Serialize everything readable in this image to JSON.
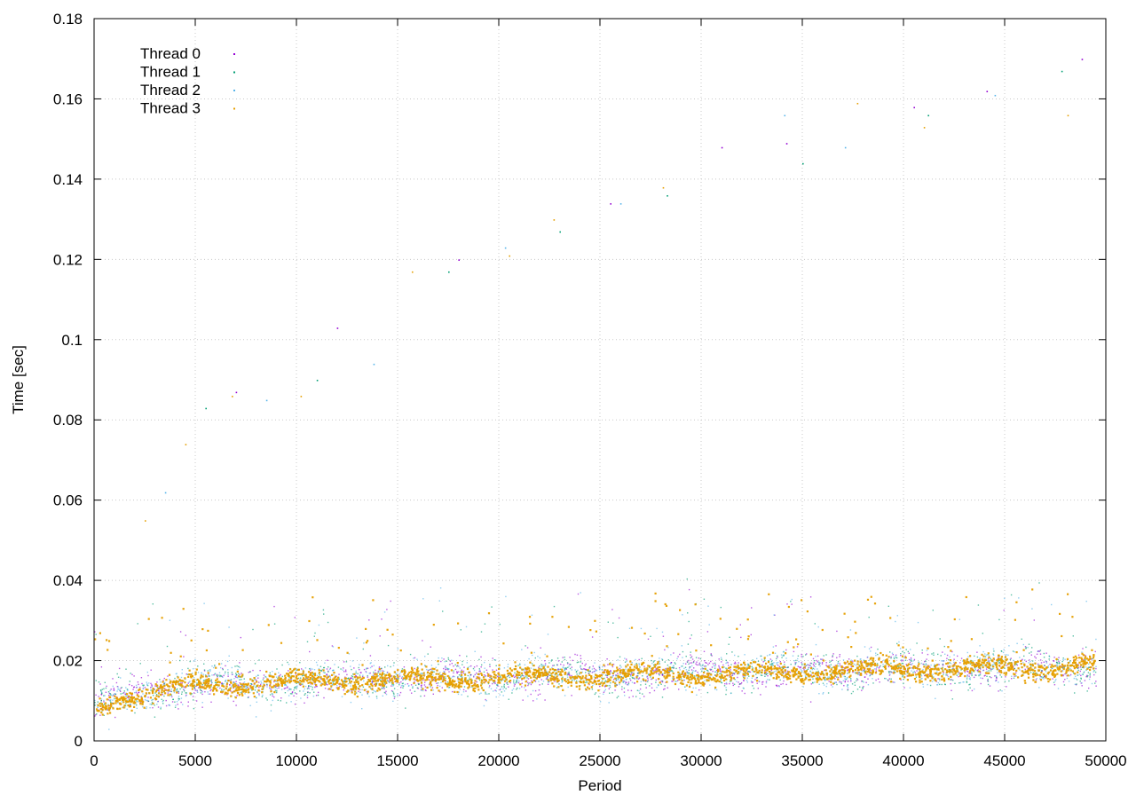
{
  "chart_data": {
    "type": "scatter",
    "xlabel": "Period",
    "ylabel": "Time [sec]",
    "xlim": [
      0,
      50000
    ],
    "ylim": [
      0,
      0.18
    ],
    "x_ticks": [
      0,
      5000,
      10000,
      15000,
      20000,
      25000,
      30000,
      35000,
      40000,
      45000,
      50000
    ],
    "y_ticks": [
      0,
      0.02,
      0.04,
      0.06,
      0.08,
      0.1,
      0.12,
      0.14,
      0.16,
      0.18
    ],
    "x_tick_labels": [
      "0",
      "5000",
      "10000",
      "15000",
      "20000",
      "25000",
      "30000",
      "35000",
      "40000",
      "45000",
      "50000"
    ],
    "y_tick_labels": [
      "0",
      "0.02",
      "0.04",
      "0.06",
      "0.08",
      "0.1",
      "0.12",
      "0.14",
      "0.16",
      "0.18"
    ],
    "grid": true,
    "legend_position": "top-left",
    "x_range_of_data": [
      0,
      49500
    ],
    "series": [
      {
        "name": "Thread 0",
        "color": "#9400d3",
        "baseline": [
          [
            0,
            0.008
          ],
          [
            1000,
            0.011
          ],
          [
            5000,
            0.014
          ],
          [
            10000,
            0.015
          ],
          [
            20000,
            0.016
          ],
          [
            30000,
            0.017
          ],
          [
            40000,
            0.018
          ],
          [
            49500,
            0.019
          ]
        ],
        "outliers": [
          [
            7000,
            0.087
          ],
          [
            12000,
            0.103
          ],
          [
            18000,
            0.12
          ],
          [
            25500,
            0.134
          ],
          [
            31000,
            0.148
          ],
          [
            34200,
            0.149
          ],
          [
            40500,
            0.158
          ],
          [
            44100,
            0.162
          ],
          [
            48800,
            0.17
          ]
        ]
      },
      {
        "name": "Thread 1",
        "color": "#009e73",
        "baseline": [
          [
            0,
            0.008
          ],
          [
            1000,
            0.011
          ],
          [
            5000,
            0.014
          ],
          [
            10000,
            0.015
          ],
          [
            20000,
            0.016
          ],
          [
            30000,
            0.017
          ],
          [
            40000,
            0.018
          ],
          [
            49500,
            0.019
          ]
        ],
        "outliers": [
          [
            5500,
            0.083
          ],
          [
            11000,
            0.09
          ],
          [
            17500,
            0.117
          ],
          [
            23000,
            0.127
          ],
          [
            28300,
            0.136
          ],
          [
            35000,
            0.144
          ],
          [
            41200,
            0.156
          ],
          [
            47800,
            0.167
          ]
        ]
      },
      {
        "name": "Thread 2",
        "color": "#56b4e9",
        "baseline": [
          [
            0,
            0.008
          ],
          [
            1000,
            0.011
          ],
          [
            5000,
            0.014
          ],
          [
            10000,
            0.015
          ],
          [
            20000,
            0.016
          ],
          [
            30000,
            0.017
          ],
          [
            40000,
            0.018
          ],
          [
            49500,
            0.019
          ]
        ],
        "outliers": [
          [
            3500,
            0.062
          ],
          [
            8500,
            0.085
          ],
          [
            13800,
            0.094
          ],
          [
            20300,
            0.123
          ],
          [
            26000,
            0.134
          ],
          [
            34100,
            0.156
          ],
          [
            37100,
            0.148
          ],
          [
            44500,
            0.161
          ]
        ]
      },
      {
        "name": "Thread 3",
        "color": "#e69f00",
        "baseline": [
          [
            0,
            0.008
          ],
          [
            1000,
            0.011
          ],
          [
            5000,
            0.014
          ],
          [
            10000,
            0.015
          ],
          [
            20000,
            0.016
          ],
          [
            30000,
            0.017
          ],
          [
            40000,
            0.018
          ],
          [
            49500,
            0.019
          ]
        ],
        "outliers": [
          [
            2500,
            0.055
          ],
          [
            4500,
            0.074
          ],
          [
            6800,
            0.086
          ],
          [
            10200,
            0.086
          ],
          [
            15700,
            0.117
          ],
          [
            20500,
            0.121
          ],
          [
            22700,
            0.13
          ],
          [
            28100,
            0.138
          ],
          [
            37700,
            0.159
          ],
          [
            41000,
            0.153
          ],
          [
            48100,
            0.156
          ]
        ]
      }
    ]
  }
}
